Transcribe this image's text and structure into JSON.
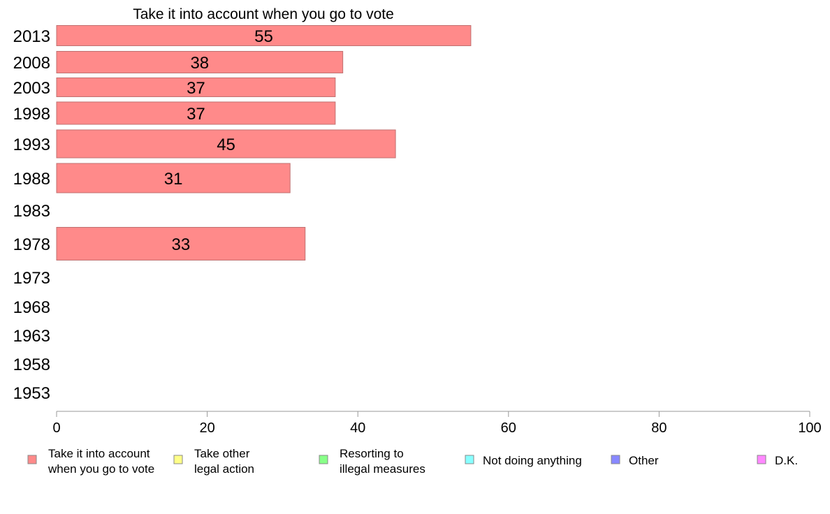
{
  "chart_data": {
    "type": "bar",
    "orientation": "horizontal",
    "title": "Take it into account when you go to vote",
    "categories": [
      "2013",
      "2008",
      "2003",
      "1998",
      "1993",
      "1988",
      "1983",
      "1978",
      "1973",
      "1968",
      "1963",
      "1958",
      "1953"
    ],
    "series": [
      {
        "name": "Take it into account when you go to vote",
        "color": "#ff8a8a",
        "values": [
          55,
          38,
          37,
          37,
          45,
          31,
          null,
          33,
          null,
          null,
          null,
          null,
          null
        ],
        "labels": [
          "55",
          "38",
          "37",
          "37",
          "45",
          "31",
          "",
          "33",
          "",
          "",
          "",
          "",
          ""
        ]
      }
    ],
    "xlim": [
      0,
      100
    ],
    "xticks": [
      "0",
      "20",
      "40",
      "60",
      "80",
      "100"
    ],
    "grid": false,
    "legend": {
      "placement": "bottom",
      "items": [
        {
          "label_lines": [
            "Take it into account",
            "when you go to vote"
          ],
          "color": "#ff8a8a"
        },
        {
          "label_lines": [
            "Take other",
            "legal action"
          ],
          "color": "#ffff88"
        },
        {
          "label_lines": [
            "Resorting to",
            "illegal measures"
          ],
          "color": "#88ff88"
        },
        {
          "label_lines": [
            "Not doing anything"
          ],
          "color": "#88ffff"
        },
        {
          "label_lines": [
            "Other"
          ],
          "color": "#8888ff"
        },
        {
          "label_lines": [
            "D.K."
          ],
          "color": "#ff88ff"
        }
      ]
    }
  }
}
